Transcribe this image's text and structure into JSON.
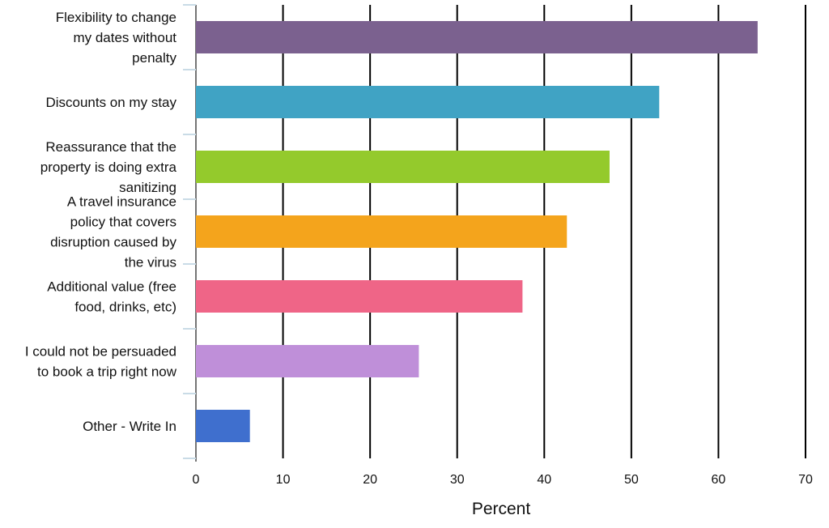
{
  "chart_data": {
    "type": "bar",
    "orientation": "horizontal",
    "categories": [
      "Flexibility to change my dates without penalty",
      "Discounts on my stay",
      "Reassurance that the property is doing extra sanitizing",
      "A travel insurance policy that covers disruption caused by the virus",
      "Additional value (free food, drinks, etc)",
      "I could not be persuaded to book a trip right now",
      "Other - Write In"
    ],
    "category_lines": [
      [
        "Flexibility to change",
        "my dates without",
        "penalty"
      ],
      [
        "Discounts on my stay"
      ],
      [
        "Reassurance that the",
        "property is doing extra",
        "sanitizing"
      ],
      [
        "A travel insurance",
        "policy that covers",
        "disruption caused by",
        "the virus"
      ],
      [
        "Additional value (free",
        "food, drinks, etc)"
      ],
      [
        "I could not be persuaded",
        "to book a trip right now"
      ],
      [
        "Other - Write In"
      ]
    ],
    "values": [
      64.5,
      53.2,
      47.5,
      42.6,
      37.5,
      25.6,
      6.2
    ],
    "colors": [
      "#7b618f",
      "#40a3c4",
      "#94ca2c",
      "#f4a41c",
      "#ef6587",
      "#bf8fd9",
      "#3f6fce"
    ],
    "xlabel": "Percent",
    "xlim": [
      0,
      70
    ],
    "xticks": [
      0,
      10,
      20,
      30,
      40,
      50,
      60,
      70
    ],
    "grid": "vertical"
  }
}
